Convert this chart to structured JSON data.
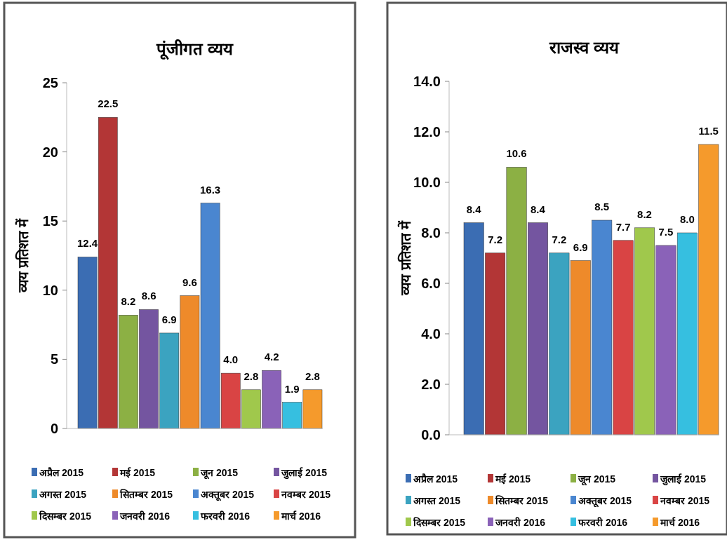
{
  "chart_data": [
    {
      "type": "bar",
      "title": "पूंजीगत व्यय",
      "ylabel": "व्यय प्रतिशत में",
      "categories": [
        null
      ],
      "series": [
        {
          "name": "अप्रैल 2015",
          "color": "#3b6db3",
          "values": [
            12.4
          ],
          "value_labels": [
            "12.4"
          ]
        },
        {
          "name": "मई 2015",
          "color": "#b33636",
          "values": [
            22.5
          ],
          "value_labels": [
            "22.5"
          ]
        },
        {
          "name": "जून 2015",
          "color": "#8cb044",
          "values": [
            8.2
          ],
          "value_labels": [
            "8.2"
          ]
        },
        {
          "name": "जुलाई 2015",
          "color": "#7455a0",
          "values": [
            8.6
          ],
          "value_labels": [
            "8.6"
          ]
        },
        {
          "name": "अगस्त 2015",
          "color": "#3ba3c0",
          "values": [
            6.9
          ],
          "value_labels": [
            "6.9"
          ]
        },
        {
          "name": "सितम्बर 2015",
          "color": "#ee8a2a",
          "values": [
            9.6
          ],
          "value_labels": [
            "9.6"
          ]
        },
        {
          "name": "अक्तूबर 2015",
          "color": "#4a86d0",
          "values": [
            16.3
          ],
          "value_labels": [
            "16.3"
          ]
        },
        {
          "name": "नवम्बर 2015",
          "color": "#d94444",
          "values": [
            4.0
          ],
          "value_labels": [
            "4.0"
          ]
        },
        {
          "name": "दिसम्बर 2015",
          "color": "#a0c84c",
          "values": [
            2.8
          ],
          "value_labels": [
            "2.8"
          ]
        },
        {
          "name": "जनवरी 2016",
          "color": "#8a62b8",
          "values": [
            4.2
          ],
          "value_labels": [
            "4.2"
          ]
        },
        {
          "name": "फरवरी 2016",
          "color": "#36bfe0",
          "values": [
            1.9
          ],
          "value_labels": [
            "1.9"
          ]
        },
        {
          "name": "मार्च 2016",
          "color": "#f59a2c",
          "values": [
            2.8
          ],
          "value_labels": [
            "2.8"
          ]
        }
      ],
      "ylim": [
        0,
        25
      ],
      "yticks": [
        0,
        5,
        10,
        15,
        20,
        25
      ],
      "legend": "bottom"
    },
    {
      "type": "bar",
      "title": "राजस्व व्यय",
      "ylabel": "व्यय प्रतिशत में",
      "categories": [
        null
      ],
      "series": [
        {
          "name": "अप्रैल 2015",
          "color": "#3b6db3",
          "values": [
            8.4
          ],
          "value_labels": [
            "8.4"
          ]
        },
        {
          "name": "मई 2015",
          "color": "#b33636",
          "values": [
            7.2
          ],
          "value_labels": [
            "7.2"
          ]
        },
        {
          "name": "जून 2015",
          "color": "#8cb044",
          "values": [
            10.6
          ],
          "value_labels": [
            "10.6"
          ]
        },
        {
          "name": "जुलाई 2015",
          "color": "#7455a0",
          "values": [
            8.4
          ],
          "value_labels": [
            "8.4"
          ]
        },
        {
          "name": "अगस्त 2015",
          "color": "#3ba3c0",
          "values": [
            7.2
          ],
          "value_labels": [
            "7.2"
          ]
        },
        {
          "name": "सितम्बर 2015",
          "color": "#ee8a2a",
          "values": [
            6.9
          ],
          "value_labels": [
            "6.9"
          ]
        },
        {
          "name": "अक्तूबर 2015",
          "color": "#4a86d0",
          "values": [
            8.5
          ],
          "value_labels": [
            "8.5"
          ]
        },
        {
          "name": "नवम्बर 2015",
          "color": "#d94444",
          "values": [
            7.7
          ],
          "value_labels": [
            "7.7"
          ]
        },
        {
          "name": "दिसम्बर 2015",
          "color": "#a0c84c",
          "values": [
            8.2
          ],
          "value_labels": [
            "8.2"
          ]
        },
        {
          "name": "जनवरी 2016",
          "color": "#8a62b8",
          "values": [
            7.5
          ],
          "value_labels": [
            "7.5"
          ]
        },
        {
          "name": "फरवरी 2016",
          "color": "#36bfe0",
          "values": [
            8.0
          ],
          "value_labels": [
            "8.0"
          ]
        },
        {
          "name": "मार्च 2016",
          "color": "#f59a2c",
          "values": [
            11.5
          ],
          "value_labels": [
            "11.5"
          ]
        }
      ],
      "ylim": [
        0,
        14
      ],
      "yticks": [
        {
          "value": 0,
          "label": "0.0"
        },
        {
          "value": 2,
          "label": "2.0"
        },
        {
          "value": 4,
          "label": "4.0"
        },
        {
          "value": 6,
          "label": "6.0"
        },
        {
          "value": 8,
          "label": "8.0"
        },
        {
          "value": 10,
          "label": "10.0"
        },
        {
          "value": 12,
          "label": "12.0"
        },
        {
          "value": 14,
          "label": "14.0"
        }
      ],
      "legend": "bottom"
    }
  ]
}
